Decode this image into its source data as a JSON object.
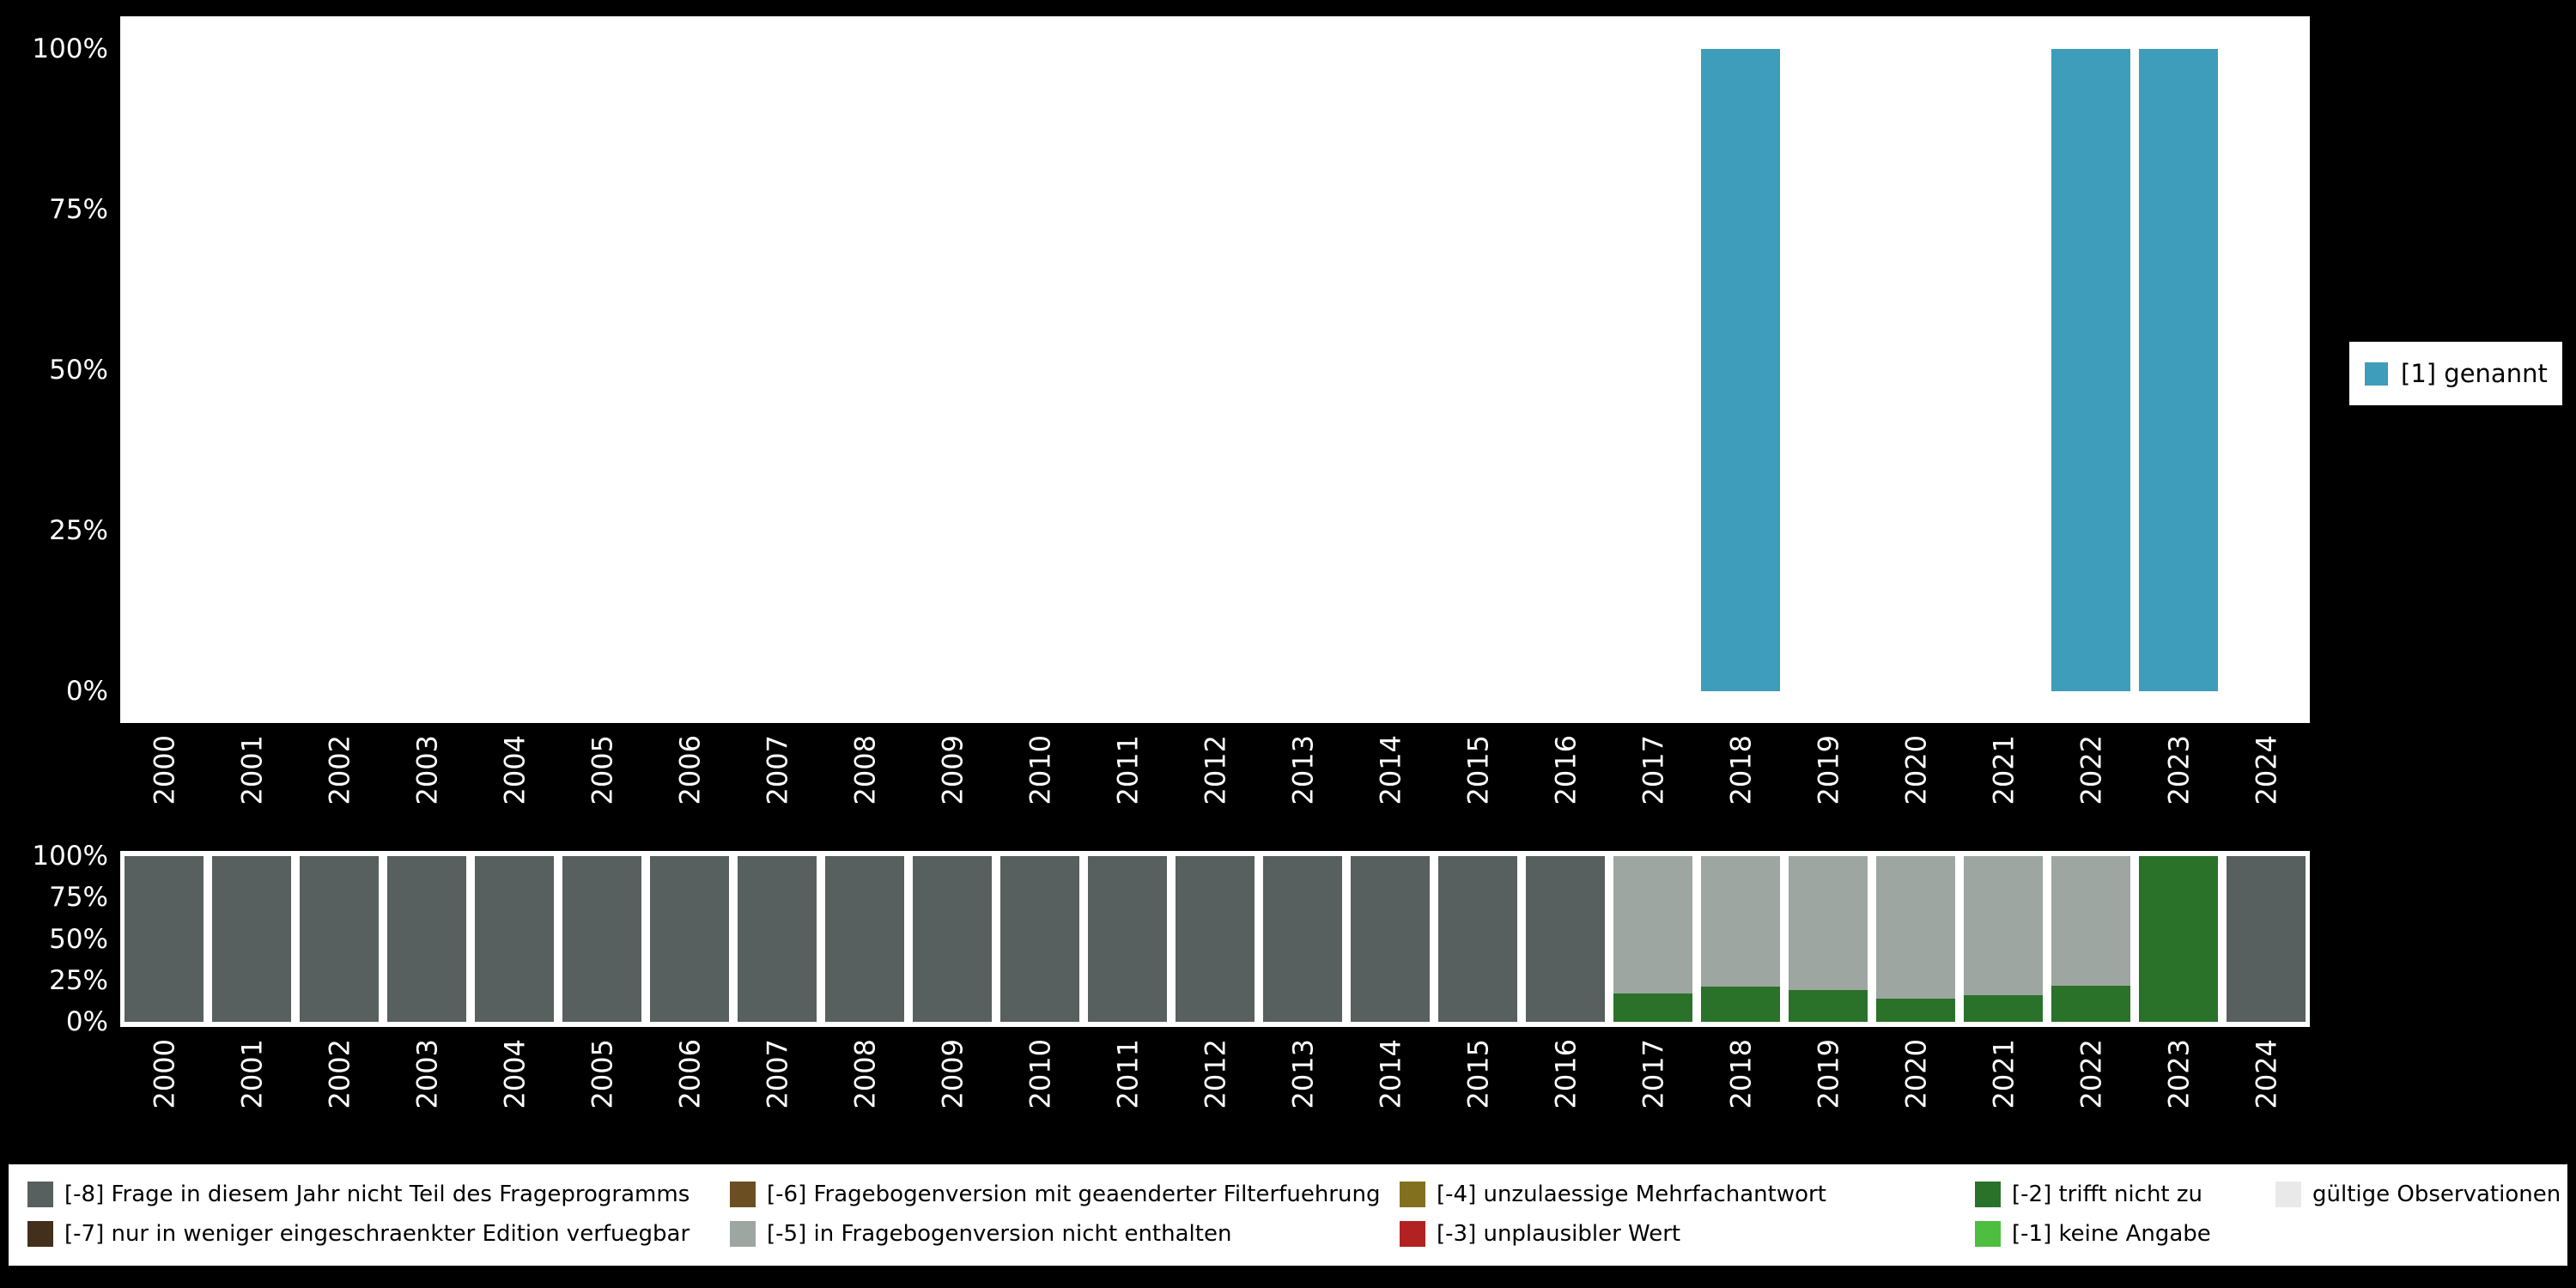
{
  "figure": {
    "background": "#000000",
    "panel_background": "#ffffff",
    "axis_text_color": "#ffffff"
  },
  "x_axis": {
    "years": [
      "2000",
      "2001",
      "2002",
      "2003",
      "2004",
      "2005",
      "2006",
      "2007",
      "2008",
      "2009",
      "2010",
      "2011",
      "2012",
      "2013",
      "2014",
      "2015",
      "2016",
      "2017",
      "2018",
      "2019",
      "2020",
      "2021",
      "2022",
      "2023",
      "2024"
    ]
  },
  "y_axis": {
    "ticks": [
      {
        "label": "0%",
        "value": 0
      },
      {
        "label": "25%",
        "value": 25
      },
      {
        "label": "50%",
        "value": 50
      },
      {
        "label": "75%",
        "value": 75
      },
      {
        "label": "100%",
        "value": 100
      }
    ]
  },
  "top_legend": {
    "items": [
      {
        "code": "genannt",
        "label": "[1] genannt",
        "color": "#3E9DBA"
      }
    ]
  },
  "missing_legend": {
    "rows": [
      [
        {
          "code": "miss8",
          "label": "[-8] Frage in diesem Jahr nicht Teil des Frageprogramms",
          "color": "#57605E"
        },
        {
          "code": "miss6",
          "label": "[-6] Fragebogenversion mit geaenderter Filterfuehrung",
          "color": "#6B4F23"
        },
        {
          "code": "miss4",
          "label": "[-4] unzulaessige Mehrfachantwort",
          "color": "#82701F"
        },
        {
          "code": "miss2",
          "label": "[-2] trifft nicht zu",
          "color": "#2A7229"
        },
        {
          "code": "valid",
          "label": "gültige Observationen",
          "color": "#E9E9E9"
        }
      ],
      [
        {
          "code": "miss7",
          "label": "[-7] nur in weniger eingeschraenkter Edition verfuegbar",
          "color": "#42301C"
        },
        {
          "code": "miss5",
          "label": "[-5] in Fragebogenversion nicht enthalten",
          "color": "#9EA6A2"
        },
        {
          "code": "miss3",
          "label": "[-3] unplausibler Wert",
          "color": "#B22222"
        },
        {
          "code": "miss1",
          "label": "[-1] keine Angabe",
          "color": "#4DBE3F"
        }
      ]
    ]
  },
  "chart_data": [
    {
      "type": "bar",
      "title": "",
      "xlabel": "",
      "ylabel": "",
      "ylim": [
        0,
        100
      ],
      "yticks": [
        "0%",
        "25%",
        "50%",
        "75%",
        "100%"
      ],
      "legend_position": "right",
      "grid": false,
      "categories": [
        "2000",
        "2001",
        "2002",
        "2003",
        "2004",
        "2005",
        "2006",
        "2007",
        "2008",
        "2009",
        "2010",
        "2011",
        "2012",
        "2013",
        "2014",
        "2015",
        "2016",
        "2017",
        "2018",
        "2019",
        "2020",
        "2021",
        "2022",
        "2023",
        "2024"
      ],
      "series": [
        {
          "name": "[1] genannt",
          "color": "#3E9DBA",
          "values": [
            0,
            0,
            0,
            0,
            0,
            0,
            0,
            0,
            0,
            0,
            0,
            0,
            0,
            0,
            0,
            0,
            0,
            0,
            100,
            0,
            0,
            0,
            100,
            100,
            0
          ]
        }
      ]
    },
    {
      "type": "bar",
      "subtype": "stacked",
      "title": "",
      "xlabel": "",
      "ylabel": "",
      "ylim": [
        0,
        100
      ],
      "yticks": [
        "0%",
        "25%",
        "50%",
        "75%",
        "100%"
      ],
      "legend_position": "bottom",
      "grid": false,
      "categories": [
        "2000",
        "2001",
        "2002",
        "2003",
        "2004",
        "2005",
        "2006",
        "2007",
        "2008",
        "2009",
        "2010",
        "2011",
        "2012",
        "2013",
        "2014",
        "2015",
        "2016",
        "2017",
        "2018",
        "2019",
        "2020",
        "2021",
        "2022",
        "2023",
        "2024"
      ],
      "series": [
        {
          "name": "[-2] trifft nicht zu",
          "color": "#2A7229",
          "values": [
            0,
            0,
            0,
            0,
            0,
            0,
            0,
            0,
            0,
            0,
            0,
            0,
            0,
            0,
            0,
            0,
            0,
            17,
            21,
            19,
            14,
            16,
            22,
            100,
            0
          ]
        },
        {
          "name": "[-5] in Fragebogenversion nicht enthalten",
          "color": "#9EA6A2",
          "values": [
            0,
            0,
            0,
            0,
            0,
            0,
            0,
            0,
            0,
            0,
            0,
            0,
            0,
            0,
            0,
            0,
            0,
            83,
            79,
            81,
            86,
            84,
            78,
            0,
            0
          ]
        },
        {
          "name": "[-8] Frage in diesem Jahr nicht Teil des Frageprogramms",
          "color": "#57605E",
          "values": [
            100,
            100,
            100,
            100,
            100,
            100,
            100,
            100,
            100,
            100,
            100,
            100,
            100,
            100,
            100,
            100,
            100,
            0,
            0,
            0,
            0,
            0,
            0,
            0,
            100
          ]
        }
      ]
    }
  ]
}
